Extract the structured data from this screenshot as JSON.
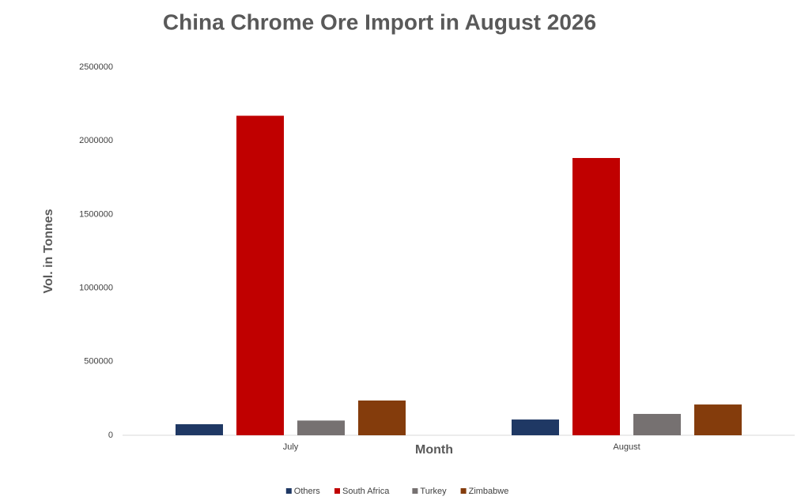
{
  "chart_data": {
    "type": "bar",
    "title": "China Chrome Ore Import in August 2026",
    "x_label": "Month",
    "y_label": "Vol. in Tonnes",
    "categories": [
      "July",
      "August"
    ],
    "series": [
      {
        "name": "Others",
        "color": "#1f3864",
        "values": [
          75000,
          107000
        ]
      },
      {
        "name": "South Africa",
        "color": "#c00000",
        "values": [
          2170000,
          1883000
        ]
      },
      {
        "name": "Turkey",
        "color": "#767171",
        "values": [
          100000,
          145000
        ]
      },
      {
        "name": "Zimbabwe",
        "color": "#843c0c",
        "values": [
          236000,
          209000
        ]
      }
    ],
    "ylim": [
      0,
      2500000
    ],
    "yticks": [
      0,
      500000,
      1000000,
      1500000,
      2000000,
      2500000
    ],
    "grid": false,
    "legend": "bottom"
  }
}
